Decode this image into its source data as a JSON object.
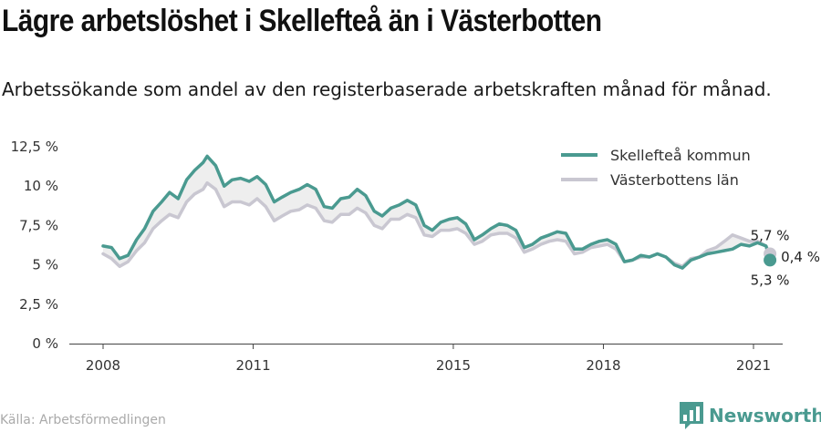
{
  "header": {
    "title": "Lägre arbetslöshet i Skellefteå än i Västerbotten",
    "subtitle": "Arbetssökande som andel av den registerbaserade arbetskraften månad för månad."
  },
  "footer": {
    "source": "Källa: Arbetsförmedlingen",
    "brand": "Newsworthy"
  },
  "colors": {
    "skelleftea": "#4a9a90",
    "vasterbotten": "#c9c7d1",
    "gap_fill": "#eeeeee",
    "brand": "#4a9a90"
  },
  "chart_data": {
    "type": "line",
    "title": "Lägre arbetslöshet i Skellefteå än i Västerbotten",
    "subtitle": "Arbetssökande som andel av den registerbaserade arbetskraften månad för månad.",
    "x_unit": "decimal year",
    "xlim": [
      2008,
      2021.4
    ],
    "ylim": [
      0,
      12.5
    ],
    "y_unit": "%",
    "y_ticks": [
      "0 %",
      "2,5 %",
      "5 %",
      "7,5 %",
      "10 %",
      "12,5 %"
    ],
    "y_tick_values": [
      0,
      2.5,
      5,
      7.5,
      10,
      12.5
    ],
    "x_ticks": [
      "2008",
      "2011",
      "2015",
      "2018",
      "2021"
    ],
    "x_tick_values": [
      2008,
      2011,
      2015,
      2018,
      2021
    ],
    "grid": false,
    "legend_position": "top-right",
    "series": [
      {
        "name": "Skellefteå kommun",
        "color": "#4a9a90",
        "points": [
          [
            2008.0,
            6.2
          ],
          [
            2008.17,
            6.1
          ],
          [
            2008.33,
            5.4
          ],
          [
            2008.5,
            5.6
          ],
          [
            2008.67,
            6.6
          ],
          [
            2008.83,
            7.3
          ],
          [
            2009.0,
            8.4
          ],
          [
            2009.17,
            9.0
          ],
          [
            2009.33,
            9.6
          ],
          [
            2009.5,
            9.2
          ],
          [
            2009.67,
            10.4
          ],
          [
            2009.83,
            11.0
          ],
          [
            2010.0,
            11.5
          ],
          [
            2010.08,
            11.9
          ],
          [
            2010.25,
            11.3
          ],
          [
            2010.42,
            10.0
          ],
          [
            2010.58,
            10.4
          ],
          [
            2010.75,
            10.5
          ],
          [
            2010.92,
            10.3
          ],
          [
            2011.08,
            10.6
          ],
          [
            2011.25,
            10.1
          ],
          [
            2011.42,
            9.0
          ],
          [
            2011.58,
            9.3
          ],
          [
            2011.75,
            9.6
          ],
          [
            2011.92,
            9.8
          ],
          [
            2012.08,
            10.1
          ],
          [
            2012.25,
            9.8
          ],
          [
            2012.42,
            8.7
          ],
          [
            2012.58,
            8.6
          ],
          [
            2012.75,
            9.2
          ],
          [
            2012.92,
            9.3
          ],
          [
            2013.08,
            9.8
          ],
          [
            2013.25,
            9.4
          ],
          [
            2013.42,
            8.4
          ],
          [
            2013.58,
            8.1
          ],
          [
            2013.75,
            8.6
          ],
          [
            2013.92,
            8.8
          ],
          [
            2014.08,
            9.1
          ],
          [
            2014.25,
            8.8
          ],
          [
            2014.42,
            7.5
          ],
          [
            2014.58,
            7.2
          ],
          [
            2014.75,
            7.7
          ],
          [
            2014.92,
            7.9
          ],
          [
            2015.08,
            8.0
          ],
          [
            2015.25,
            7.6
          ],
          [
            2015.42,
            6.6
          ],
          [
            2015.58,
            6.9
          ],
          [
            2015.75,
            7.3
          ],
          [
            2015.92,
            7.6
          ],
          [
            2016.08,
            7.5
          ],
          [
            2016.25,
            7.2
          ],
          [
            2016.42,
            6.1
          ],
          [
            2016.58,
            6.3
          ],
          [
            2016.75,
            6.7
          ],
          [
            2016.92,
            6.9
          ],
          [
            2017.08,
            7.1
          ],
          [
            2017.25,
            7.0
          ],
          [
            2017.42,
            6.0
          ],
          [
            2017.58,
            6.0
          ],
          [
            2017.75,
            6.3
          ],
          [
            2017.92,
            6.5
          ],
          [
            2018.08,
            6.6
          ],
          [
            2018.25,
            6.3
          ],
          [
            2018.42,
            5.2
          ],
          [
            2018.58,
            5.3
          ],
          [
            2018.75,
            5.6
          ],
          [
            2018.92,
            5.5
          ],
          [
            2019.08,
            5.7
          ],
          [
            2019.25,
            5.5
          ],
          [
            2019.42,
            5.0
          ],
          [
            2019.58,
            4.8
          ],
          [
            2019.75,
            5.3
          ],
          [
            2019.92,
            5.5
          ],
          [
            2020.08,
            5.7
          ],
          [
            2020.25,
            5.8
          ],
          [
            2020.42,
            5.9
          ],
          [
            2020.58,
            6.0
          ],
          [
            2020.75,
            6.3
          ],
          [
            2020.92,
            6.2
          ],
          [
            2021.08,
            6.4
          ],
          [
            2021.25,
            6.2
          ],
          [
            2021.33,
            5.3
          ]
        ],
        "end_value": 5.3,
        "end_label": "5,3 %"
      },
      {
        "name": "Västerbottens län",
        "color": "#c9c7d1",
        "points": [
          [
            2008.0,
            5.7
          ],
          [
            2008.17,
            5.4
          ],
          [
            2008.33,
            4.9
          ],
          [
            2008.5,
            5.2
          ],
          [
            2008.67,
            5.9
          ],
          [
            2008.83,
            6.4
          ],
          [
            2009.0,
            7.3
          ],
          [
            2009.17,
            7.8
          ],
          [
            2009.33,
            8.2
          ],
          [
            2009.5,
            8.0
          ],
          [
            2009.67,
            9.0
          ],
          [
            2009.83,
            9.5
          ],
          [
            2010.0,
            9.8
          ],
          [
            2010.08,
            10.2
          ],
          [
            2010.25,
            9.8
          ],
          [
            2010.42,
            8.7
          ],
          [
            2010.58,
            9.0
          ],
          [
            2010.75,
            9.0
          ],
          [
            2010.92,
            8.8
          ],
          [
            2011.08,
            9.2
          ],
          [
            2011.25,
            8.7
          ],
          [
            2011.42,
            7.8
          ],
          [
            2011.58,
            8.1
          ],
          [
            2011.75,
            8.4
          ],
          [
            2011.92,
            8.5
          ],
          [
            2012.08,
            8.8
          ],
          [
            2012.25,
            8.6
          ],
          [
            2012.42,
            7.8
          ],
          [
            2012.58,
            7.7
          ],
          [
            2012.75,
            8.2
          ],
          [
            2012.92,
            8.2
          ],
          [
            2013.08,
            8.6
          ],
          [
            2013.25,
            8.3
          ],
          [
            2013.42,
            7.5
          ],
          [
            2013.58,
            7.3
          ],
          [
            2013.75,
            7.9
          ],
          [
            2013.92,
            7.9
          ],
          [
            2014.08,
            8.2
          ],
          [
            2014.25,
            8.0
          ],
          [
            2014.42,
            6.9
          ],
          [
            2014.58,
            6.8
          ],
          [
            2014.75,
            7.2
          ],
          [
            2014.92,
            7.2
          ],
          [
            2015.08,
            7.3
          ],
          [
            2015.25,
            7.0
          ],
          [
            2015.42,
            6.3
          ],
          [
            2015.58,
            6.5
          ],
          [
            2015.75,
            6.9
          ],
          [
            2015.92,
            7.0
          ],
          [
            2016.08,
            7.0
          ],
          [
            2016.25,
            6.7
          ],
          [
            2016.42,
            5.8
          ],
          [
            2016.58,
            6.0
          ],
          [
            2016.75,
            6.3
          ],
          [
            2016.92,
            6.5
          ],
          [
            2017.08,
            6.6
          ],
          [
            2017.25,
            6.5
          ],
          [
            2017.42,
            5.7
          ],
          [
            2017.58,
            5.8
          ],
          [
            2017.75,
            6.1
          ],
          [
            2017.92,
            6.2
          ],
          [
            2018.08,
            6.3
          ],
          [
            2018.25,
            6.0
          ],
          [
            2018.42,
            5.2
          ],
          [
            2018.58,
            5.3
          ],
          [
            2018.75,
            5.5
          ],
          [
            2018.92,
            5.5
          ],
          [
            2019.08,
            5.7
          ],
          [
            2019.25,
            5.5
          ],
          [
            2019.42,
            5.1
          ],
          [
            2019.58,
            4.9
          ],
          [
            2019.75,
            5.4
          ],
          [
            2019.92,
            5.5
          ],
          [
            2020.08,
            5.9
          ],
          [
            2020.25,
            6.1
          ],
          [
            2020.42,
            6.5
          ],
          [
            2020.58,
            6.9
          ],
          [
            2020.75,
            6.7
          ],
          [
            2020.92,
            6.5
          ],
          [
            2021.08,
            6.5
          ],
          [
            2021.25,
            6.2
          ],
          [
            2021.33,
            5.7
          ]
        ],
        "end_value": 5.7,
        "end_label": "5,7 %"
      }
    ],
    "annotations": [
      {
        "text": "0,4 %",
        "meaning": "difference between series at last point"
      }
    ]
  }
}
